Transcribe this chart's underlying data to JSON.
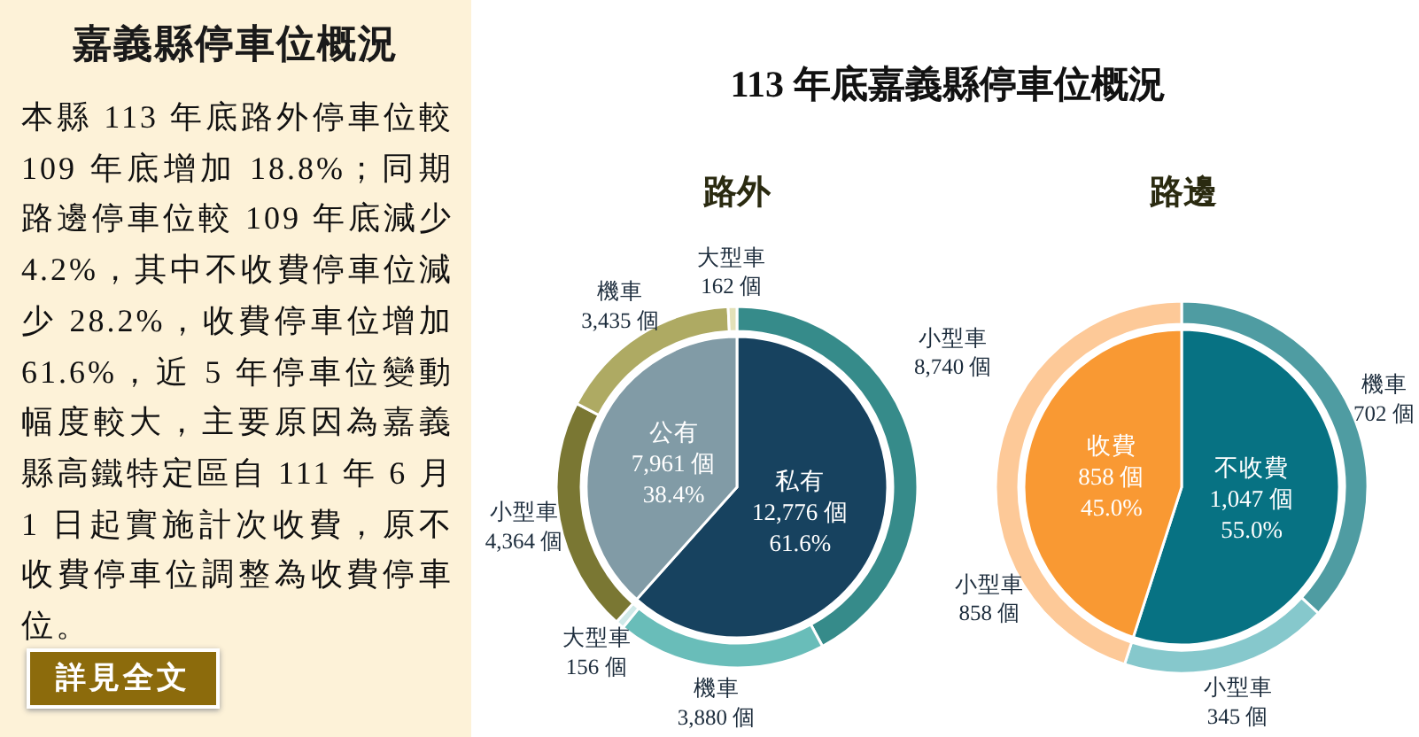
{
  "chart_data": [
    {
      "type": "other",
      "title": "嘉義縣停車位概況",
      "annotations": [
        "本縣 113 年底路外停車位較 109 年底增加 18.8%；同期路邊停車位較 109 年底減少 4.2%，其中不收費停車位減少 28.2%，收費停車位增加 61.6%，近 5 年停車位變動幅度較大，主要原因為嘉義縣高鐵特定區自 111 年 6 月 1 日起實施計次收費，原不收費停車位調整為收費停車位。",
        "詳見全文"
      ]
    },
    {
      "type": "pie",
      "title": "113 年底嘉義縣停車位概況",
      "subtitle": "路外",
      "categories": [
        "私有",
        "公有"
      ],
      "values": [
        12776,
        7961
      ],
      "colors": [
        "#17425f",
        "#819ba6"
      ],
      "value_labels": [
        "12,776 個\n61.6%",
        "7,961 個\n38.4%"
      ]
    },
    {
      "type": "donut",
      "categories": [
        "小型車",
        "機車",
        "大型車",
        "小型車",
        "機車",
        "大型車"
      ],
      "values": [
        8740,
        3880,
        156,
        4364,
        3435,
        162
      ],
      "colors": [
        "#368b8a",
        "#69bdb9",
        "#cfe9e8",
        "#7a7733",
        "#aeaa63",
        "#e3e1b8"
      ],
      "value_labels": [
        "8,740 個",
        "3,880 個",
        "156 個",
        "4,364 個",
        "3,435 個",
        "162 個"
      ]
    },
    {
      "type": "pie",
      "subtitle": "路邊",
      "categories": [
        "不收費",
        "收費"
      ],
      "values": [
        1047,
        858
      ],
      "colors": [
        "#077283",
        "#f99933"
      ],
      "value_labels": [
        "1,047 個\n55.0%",
        "858 個\n45.0%"
      ]
    },
    {
      "type": "donut",
      "categories": [
        "機車",
        "小型車",
        "小型車"
      ],
      "values": [
        702,
        345,
        858
      ],
      "colors": [
        "#4f9ca2",
        "#86c8cc",
        "#fdc998"
      ],
      "value_labels": [
        "702 個",
        "345 個",
        "858 個"
      ]
    }
  ]
}
